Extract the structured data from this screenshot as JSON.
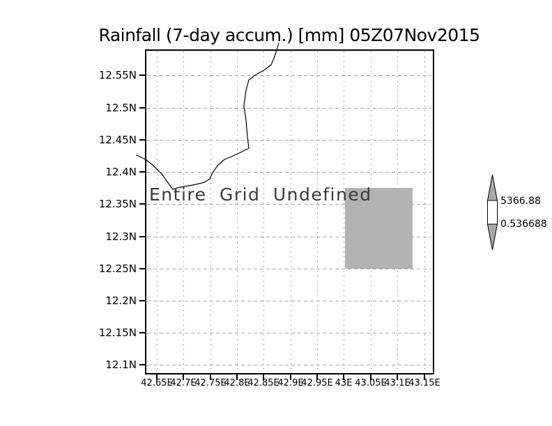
{
  "title": "Rainfall (7-day accum.) [mm] 05Z07Nov2015",
  "map": {
    "undefined_message": "Entire Grid Undefined",
    "colorbar": {
      "upper_value": "5366.88",
      "lower_value": "0.536688"
    }
  },
  "chart_data": {
    "type": "heatmap",
    "title": "Rainfall (7-day accum.) [mm] 05Z07Nov2015",
    "variable": "Rainfall (7-day accum.)",
    "units": "mm",
    "time": "05Z07Nov2015",
    "status_message": "Entire Grid Undefined",
    "x_ticks": [
      "42.65E",
      "42.7E",
      "42.75E",
      "42.8E",
      "42.85E",
      "42.9E",
      "42.95E",
      "43E",
      "43.05E",
      "43.1E",
      "43.15E"
    ],
    "y_ticks": [
      "12.55N",
      "12.5N",
      "12.45N",
      "12.4N",
      "12.35N",
      "12.3N",
      "12.25N",
      "12.2N",
      "12.15N",
      "12.1N"
    ],
    "lon_range_deg_e_approx": [
      42.63,
      43.17
    ],
    "lat_range_deg_n_approx": [
      12.09,
      12.59
    ],
    "grid_lines": true,
    "legend_position": "right",
    "colorbar": {
      "min": 0.536688,
      "max": 5366.88,
      "box_fill": "#ffffff",
      "triangle_fill": "#a9a9a9"
    },
    "shaded_region": {
      "lon_e": [
        43.0,
        43.13
      ],
      "lat_n": [
        12.25,
        12.375
      ],
      "color": "#b2b2b2"
    },
    "features": [
      "coastline"
    ]
  },
  "colors": {
    "background": "#ffffff",
    "grid": "#a6a6a6",
    "frame": "#000000",
    "shaded_region": "#b2b2b2",
    "colorbar_triangles": "#a9a9a9",
    "undefined_text": "#3a3a3a"
  }
}
